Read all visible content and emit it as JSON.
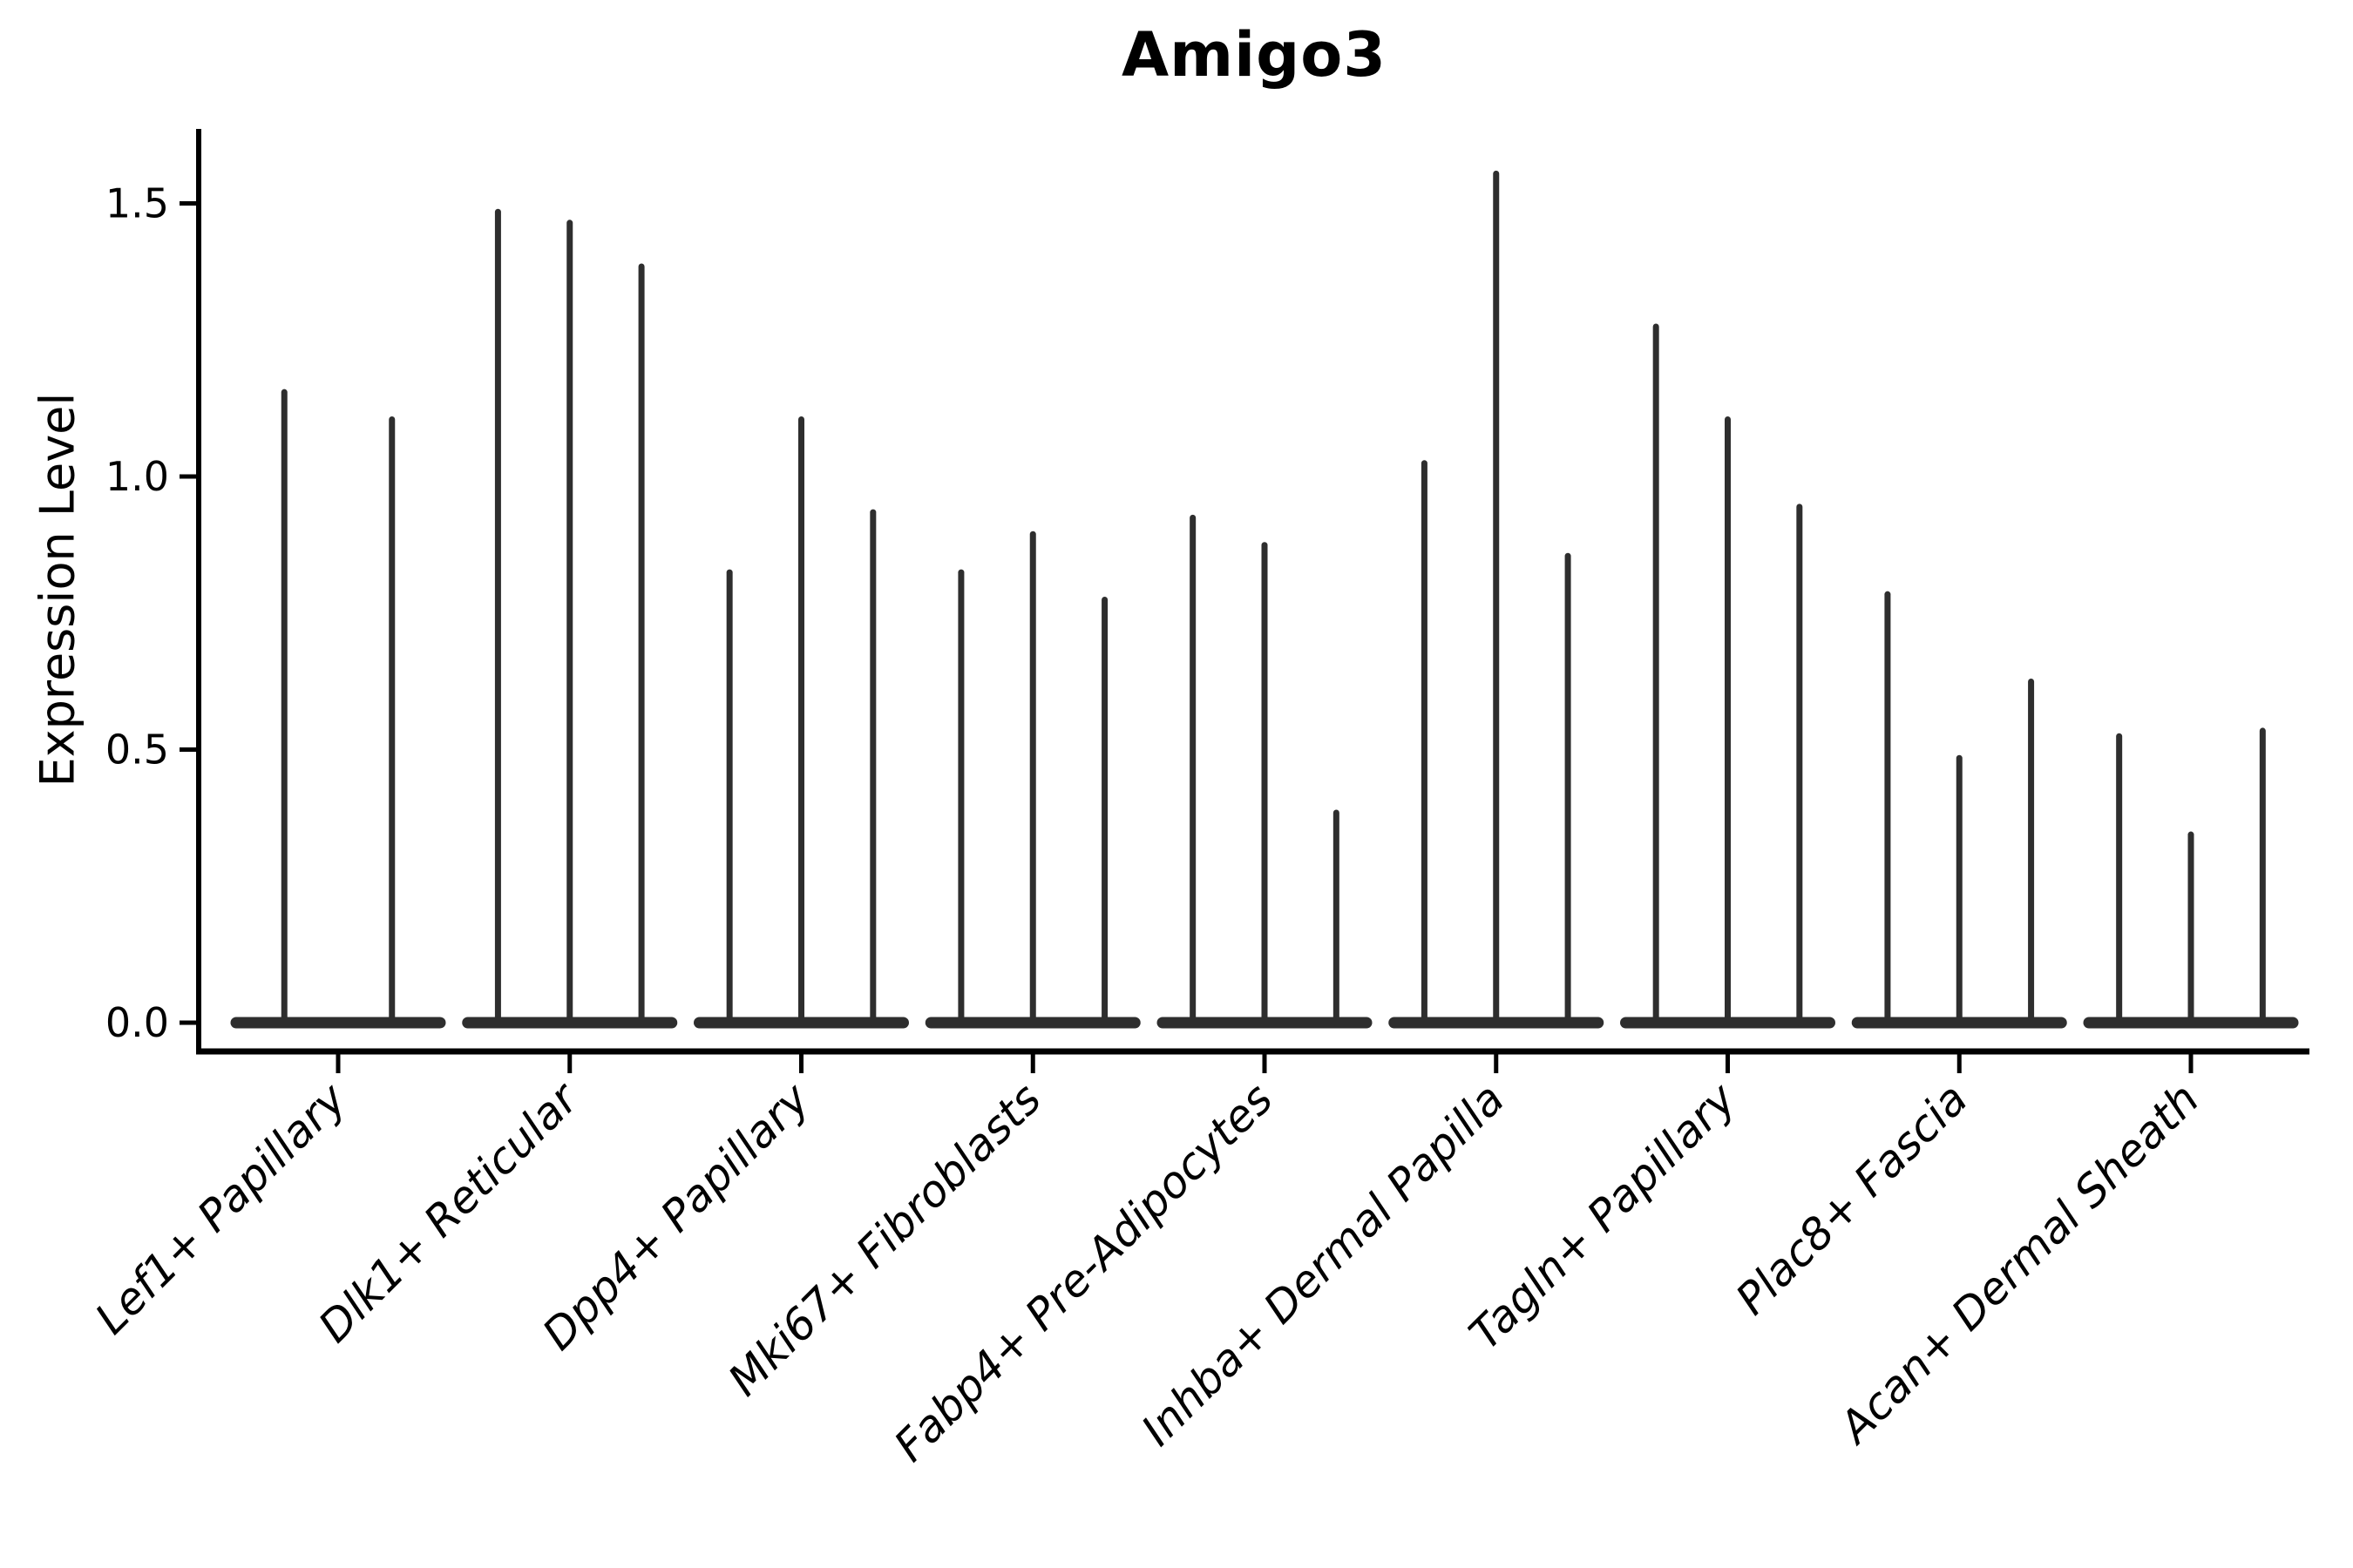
{
  "chart_data": {
    "type": "violin",
    "title": "Amigo3",
    "ylabel": "Expression Level",
    "xlabel": "",
    "ylim": [
      0,
      1.63
    ],
    "yticks": [
      0.0,
      0.5,
      1.0,
      1.5
    ],
    "ytick_labels": [
      "0.0",
      "0.5",
      "1.0",
      "1.5"
    ],
    "grid": false,
    "legend": null,
    "x_tick_rotation_deg": 45,
    "violin_style": "zero-inflated spike violins: wide flat base at 0 with thin spike to max expression",
    "categories": [
      "Lef1+ Papillary",
      "Dlk1+ Reticular",
      "Dpp4+ Papillary",
      "Mki67+ Fibroblasts",
      "Fabp4+ Pre-Adipocytes",
      "Inhba+ Dermal Papilla",
      "Tagln+ Papillary",
      "Plac8+ Fascia",
      "Acan+ Dermal Sheath"
    ],
    "groups": [
      {
        "label": "Lef1+ Papillary",
        "spike_max_values": [
          1.16,
          1.11
        ]
      },
      {
        "label": "Dlk1+ Reticular",
        "spike_max_values": [
          1.49,
          1.47,
          1.39
        ]
      },
      {
        "label": "Dpp4+ Papillary",
        "spike_max_values": [
          0.83,
          1.11,
          0.94
        ]
      },
      {
        "label": "Mki67+ Fibroblasts",
        "spike_max_values": [
          0.83,
          0.9,
          0.78
        ]
      },
      {
        "label": "Fabp4+ Pre-Adipocytes",
        "spike_max_values": [
          0.93,
          0.88,
          0.39
        ]
      },
      {
        "label": "Inhba+ Dermal Papilla",
        "spike_max_values": [
          1.03,
          1.56,
          0.86
        ]
      },
      {
        "label": "Tagln+ Papillary",
        "spike_max_values": [
          1.28,
          1.11,
          0.95
        ]
      },
      {
        "label": "Plac8+ Fascia",
        "spike_max_values": [
          0.79,
          0.49,
          0.63
        ]
      },
      {
        "label": "Acan+ Dermal Sheath",
        "spike_max_values": [
          0.53,
          0.35,
          0.54
        ]
      }
    ],
    "colors": {
      "violin_fill": "#2e2e2e",
      "axis": "#000000",
      "background": "#ffffff",
      "text": "#000000"
    }
  }
}
